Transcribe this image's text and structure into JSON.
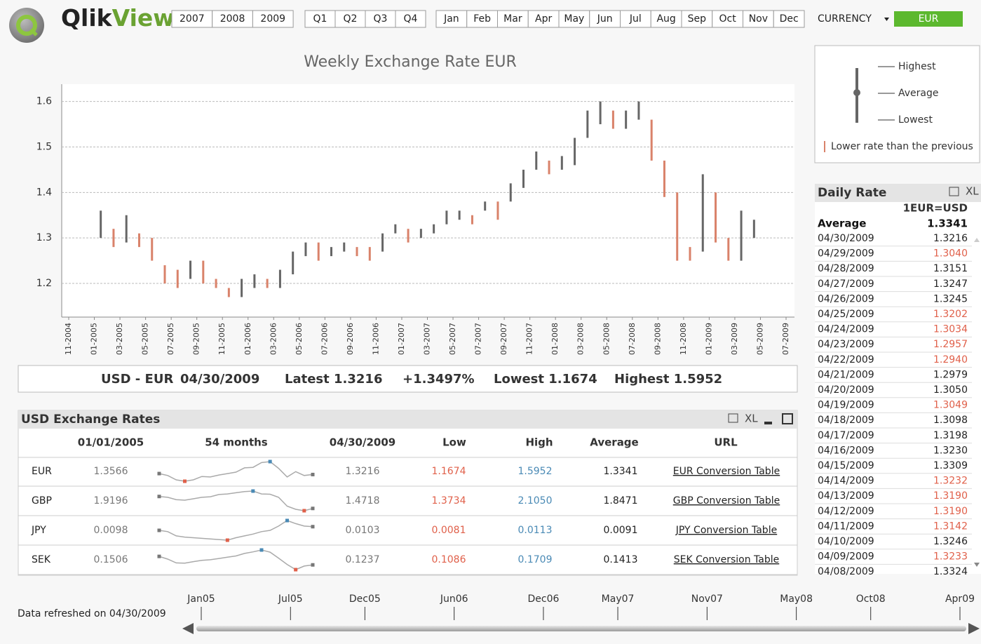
{
  "header": {
    "logo": [
      "Qlik",
      "View"
    ],
    "years": [
      "2007",
      "2008",
      "2009"
    ],
    "quarters": [
      "Q1",
      "Q2",
      "Q3",
      "Q4"
    ],
    "months": [
      "Jan",
      "Feb",
      "Mar",
      "Apr",
      "May",
      "Jun",
      "Jul",
      "Aug",
      "Sep",
      "Oct",
      "Nov",
      "Dec"
    ],
    "currency_label": "CURRENCY",
    "currency_value": "EUR"
  },
  "chart_data": {
    "type": "hilo",
    "title": "Weekly Exchange Rate EUR",
    "x": [
      "2005-01",
      "2005-02",
      "2005-03",
      "2005-04",
      "2005-05",
      "2005-06",
      "2005-07",
      "2005-08",
      "2005-09",
      "2005-10",
      "2005-11",
      "2005-12",
      "2006-01",
      "2006-02",
      "2006-03",
      "2006-04",
      "2006-05",
      "2006-06",
      "2006-07",
      "2006-08",
      "2006-09",
      "2006-10",
      "2006-11",
      "2006-12",
      "2007-01",
      "2007-02",
      "2007-03",
      "2007-04",
      "2007-05",
      "2007-06",
      "2007-07",
      "2007-08",
      "2007-09",
      "2007-10",
      "2007-11",
      "2007-12",
      "2008-01",
      "2008-02",
      "2008-03",
      "2008-04",
      "2008-05",
      "2008-06",
      "2008-07",
      "2008-08",
      "2008-09",
      "2008-10",
      "2008-11",
      "2008-12",
      "2009-01",
      "2009-02",
      "2009-03",
      "2009-04"
    ],
    "high": [
      1.36,
      1.32,
      1.35,
      1.31,
      1.3,
      1.24,
      1.23,
      1.25,
      1.25,
      1.21,
      1.19,
      1.21,
      1.22,
      1.21,
      1.23,
      1.27,
      1.29,
      1.29,
      1.28,
      1.29,
      1.28,
      1.28,
      1.31,
      1.33,
      1.32,
      1.32,
      1.33,
      1.36,
      1.36,
      1.35,
      1.38,
      1.38,
      1.42,
      1.45,
      1.49,
      1.47,
      1.48,
      1.52,
      1.58,
      1.6,
      1.58,
      1.58,
      1.6,
      1.56,
      1.47,
      1.4,
      1.28,
      1.44,
      1.4,
      1.3,
      1.36,
      1.34
    ],
    "low": [
      1.3,
      1.28,
      1.29,
      1.28,
      1.25,
      1.2,
      1.19,
      1.21,
      1.2,
      1.19,
      1.17,
      1.17,
      1.19,
      1.19,
      1.19,
      1.22,
      1.26,
      1.25,
      1.26,
      1.27,
      1.26,
      1.25,
      1.27,
      1.31,
      1.29,
      1.3,
      1.31,
      1.33,
      1.34,
      1.33,
      1.36,
      1.34,
      1.38,
      1.41,
      1.45,
      1.44,
      1.45,
      1.46,
      1.52,
      1.55,
      1.54,
      1.54,
      1.56,
      1.47,
      1.39,
      1.25,
      1.25,
      1.27,
      1.29,
      1.25,
      1.25,
      1.3
    ],
    "color": "#666666",
    "down_color": "#d9826a",
    "ylim": [
      1.126,
      1.638
    ],
    "yticks": [
      1.2,
      1.3,
      1.4,
      1.5,
      1.6
    ],
    "xlim": [
      "2004-11",
      "2009-07"
    ],
    "xticks": [
      {
        "value": "2004-11",
        "label": "11-2004"
      },
      {
        "value": "2005-01",
        "label": "01-2005"
      },
      {
        "value": "2005-03",
        "label": "03-2005"
      },
      {
        "value": "2005-05",
        "label": "05-2005"
      },
      {
        "value": "2005-07",
        "label": "07-2005"
      },
      {
        "value": "2005-09",
        "label": "09-2005"
      },
      {
        "value": "2005-11",
        "label": "11-2005"
      },
      {
        "value": "2006-01",
        "label": "01-2006"
      },
      {
        "value": "2006-03",
        "label": "03-2006"
      },
      {
        "value": "2006-05",
        "label": "05-2006"
      },
      {
        "value": "2006-07",
        "label": "07-2006"
      },
      {
        "value": "2006-09",
        "label": "09-2006"
      },
      {
        "value": "2006-11",
        "label": "11-2006"
      },
      {
        "value": "2007-01",
        "label": "01-2007"
      },
      {
        "value": "2007-03",
        "label": "03-2007"
      },
      {
        "value": "2007-05",
        "label": "05-2007"
      },
      {
        "value": "2007-07",
        "label": "07-2007"
      },
      {
        "value": "2007-09",
        "label": "09-2007"
      },
      {
        "value": "2007-11",
        "label": "11-2007"
      },
      {
        "value": "2008-01",
        "label": "01-2008"
      },
      {
        "value": "2008-03",
        "label": "03-2008"
      },
      {
        "value": "2008-05",
        "label": "05-2008"
      },
      {
        "value": "2008-07",
        "label": "07-2008"
      },
      {
        "value": "2008-09",
        "label": "09-2008"
      },
      {
        "value": "2008-11",
        "label": "11-2008"
      },
      {
        "value": "2009-01",
        "label": "01-2009"
      },
      {
        "value": "2009-03",
        "label": "03-2009"
      },
      {
        "value": "2009-05",
        "label": "05-2009"
      },
      {
        "value": "2009-07",
        "label": "07-2009"
      }
    ],
    "grid": true,
    "legend": {
      "highest": "Highest",
      "average": "Average",
      "lowest": "Lowest",
      "lower": "Lower rate than the previous"
    }
  },
  "summary": {
    "pair": "USD - EUR",
    "date": "04/30/2009",
    "latest": "Latest 1.3216",
    "change": "+1.3497%",
    "lowest": "Lowest 1.1674",
    "highest": "Highest 1.5952"
  },
  "rates_table": {
    "title": "USD Exchange Rates",
    "tool": "XL",
    "columns": [
      "01/01/2005",
      "54 months",
      "04/30/2009",
      "Low",
      "High",
      "Average",
      "URL"
    ],
    "rows": [
      {
        "currency": "EUR",
        "start": "1.3566",
        "spark": [
          1.34,
          1.3,
          1.21,
          1.18,
          1.21,
          1.28,
          1.27,
          1.31,
          1.34,
          1.37,
          1.46,
          1.47,
          1.57,
          1.59,
          1.45,
          1.27,
          1.38,
          1.3,
          1.32
        ],
        "end": "1.3216",
        "low": "1.1674",
        "high": "1.5952",
        "average": "1.3341",
        "url": "EUR Conversion Table"
      },
      {
        "currency": "GBP",
        "start": "1.9196",
        "spark": [
          1.89,
          1.86,
          1.78,
          1.76,
          1.81,
          1.86,
          1.88,
          1.96,
          1.98,
          2.02,
          2.06,
          2.08,
          1.98,
          1.97,
          1.86,
          1.55,
          1.44,
          1.39,
          1.47
        ],
        "end": "1.4718",
        "low": "1.3734",
        "high": "2.1050",
        "average": "1.8471",
        "url": "GBP Conversion Table"
      },
      {
        "currency": "JPY",
        "start": "0.0098",
        "spark": [
          0.0097,
          0.0095,
          0.0088,
          0.0086,
          0.0085,
          0.0084,
          0.0083,
          0.0082,
          0.0081,
          0.0085,
          0.0088,
          0.0091,
          0.0095,
          0.0097,
          0.0104,
          0.0113,
          0.0108,
          0.0104,
          0.0103
        ],
        "end": "0.0103",
        "low": "0.0081",
        "high": "0.0113",
        "average": "0.0091",
        "url": "JPY Conversion Table"
      },
      {
        "currency": "SEK",
        "start": "0.1506",
        "spark": [
          0.1506,
          0.142,
          0.13,
          0.129,
          0.134,
          0.138,
          0.14,
          0.144,
          0.148,
          0.152,
          0.16,
          0.165,
          0.1709,
          0.164,
          0.145,
          0.125,
          0.1086,
          0.12,
          0.1237
        ],
        "end": "0.1237",
        "low": "0.1086",
        "high": "0.1709",
        "average": "0.1413",
        "url": "SEK Conversion Table"
      }
    ]
  },
  "daily_rate": {
    "title": "Daily Rate",
    "tool": "XL",
    "header": "1EUR=USD",
    "average_label": "Average",
    "average": "1.3341",
    "rows": [
      {
        "date": "04/30/2009",
        "rate": "1.3216",
        "color": "#222222"
      },
      {
        "date": "04/29/2009",
        "rate": "1.3040",
        "color": "#e0604a"
      },
      {
        "date": "04/28/2009",
        "rate": "1.3151",
        "color": "#222222"
      },
      {
        "date": "04/27/2009",
        "rate": "1.3247",
        "color": "#222222"
      },
      {
        "date": "04/26/2009",
        "rate": "1.3245",
        "color": "#222222"
      },
      {
        "date": "04/25/2009",
        "rate": "1.3202",
        "color": "#e0604a"
      },
      {
        "date": "04/24/2009",
        "rate": "1.3034",
        "color": "#e0604a"
      },
      {
        "date": "04/23/2009",
        "rate": "1.2957",
        "color": "#e0604a"
      },
      {
        "date": "04/22/2009",
        "rate": "1.2940",
        "color": "#e0604a"
      },
      {
        "date": "04/21/2009",
        "rate": "1.2979",
        "color": "#222222"
      },
      {
        "date": "04/20/2009",
        "rate": "1.3050",
        "color": "#222222"
      },
      {
        "date": "04/19/2009",
        "rate": "1.3049",
        "color": "#e0604a"
      },
      {
        "date": "04/18/2009",
        "rate": "1.3098",
        "color": "#222222"
      },
      {
        "date": "04/17/2009",
        "rate": "1.3198",
        "color": "#222222"
      },
      {
        "date": "04/16/2009",
        "rate": "1.3230",
        "color": "#222222"
      },
      {
        "date": "04/15/2009",
        "rate": "1.3309",
        "color": "#222222"
      },
      {
        "date": "04/14/2009",
        "rate": "1.3232",
        "color": "#e0604a"
      },
      {
        "date": "04/13/2009",
        "rate": "1.3190",
        "color": "#e0604a"
      },
      {
        "date": "04/12/2009",
        "rate": "1.3190",
        "color": "#e0604a"
      },
      {
        "date": "04/11/2009",
        "rate": "1.3142",
        "color": "#e0604a"
      },
      {
        "date": "04/10/2009",
        "rate": "1.3246",
        "color": "#222222"
      },
      {
        "date": "04/09/2009",
        "rate": "1.3233",
        "color": "#e0604a"
      },
      {
        "date": "04/08/2009",
        "rate": "1.3324",
        "color": "#222222"
      }
    ]
  },
  "timeline": {
    "xlim": [
      "2005-01",
      "2009-04"
    ],
    "ticks": [
      {
        "value": "2005-01",
        "label": "Jan05"
      },
      {
        "value": "2005-07",
        "label": "Jul05"
      },
      {
        "value": "2005-12",
        "label": "Dec05"
      },
      {
        "value": "2006-06",
        "label": "Jun06"
      },
      {
        "value": "2006-12",
        "label": "Dec06"
      },
      {
        "value": "2007-05",
        "label": "May07"
      },
      {
        "value": "2007-11",
        "label": "Nov07"
      },
      {
        "value": "2008-05",
        "label": "May08"
      },
      {
        "value": "2008-10",
        "label": "Oct08"
      },
      {
        "value": "2009-04",
        "label": "Apr09"
      }
    ],
    "refreshed": "Data refreshed on 04/30/2009"
  }
}
